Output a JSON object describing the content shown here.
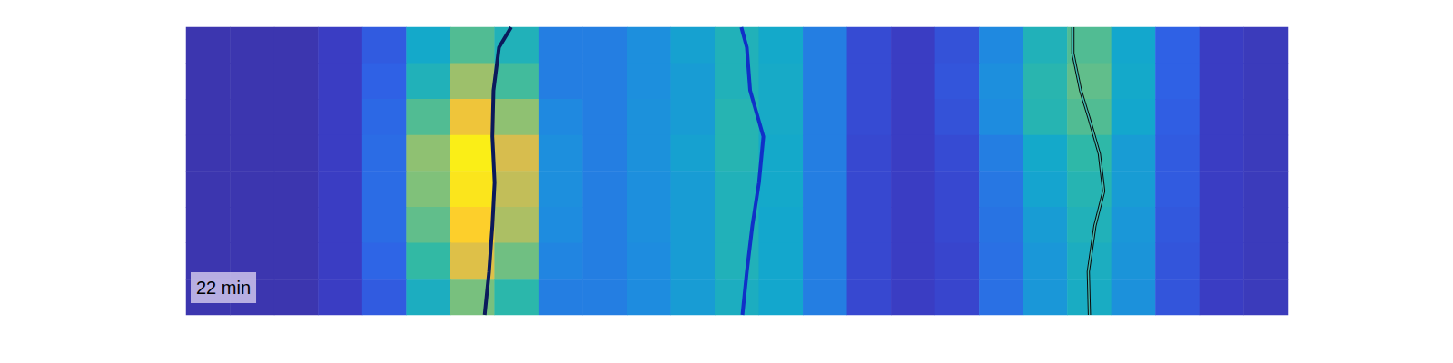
{
  "chart_data": {
    "type": "heatmap",
    "annotation": "22 min",
    "tick_labels": false,
    "xlim": [
      0,
      100
    ],
    "ylim": [
      0,
      100
    ],
    "zlim": [
      0,
      1
    ],
    "cells": [
      [
        0.05,
        0.05,
        0.05,
        0.1,
        0.2,
        0.45,
        0.6,
        0.5,
        0.3,
        0.3,
        0.35,
        0.42,
        0.5,
        0.45,
        0.3,
        0.15,
        0.1,
        0.17,
        0.33,
        0.5,
        0.6,
        0.44,
        0.22,
        0.1,
        0.08
      ],
      [
        0.05,
        0.05,
        0.05,
        0.1,
        0.22,
        0.5,
        0.7,
        0.58,
        0.3,
        0.3,
        0.35,
        0.4,
        0.5,
        0.46,
        0.3,
        0.15,
        0.1,
        0.18,
        0.35,
        0.53,
        0.62,
        0.45,
        0.22,
        0.1,
        0.08
      ],
      [
        0.05,
        0.05,
        0.05,
        0.1,
        0.24,
        0.6,
        0.85,
        0.68,
        0.33,
        0.3,
        0.36,
        0.4,
        0.52,
        0.46,
        0.3,
        0.15,
        0.1,
        0.17,
        0.34,
        0.52,
        0.6,
        0.44,
        0.21,
        0.1,
        0.08
      ],
      [
        0.05,
        0.05,
        0.05,
        0.1,
        0.25,
        0.68,
        0.97,
        0.78,
        0.35,
        0.3,
        0.36,
        0.42,
        0.52,
        0.45,
        0.3,
        0.14,
        0.1,
        0.15,
        0.3,
        0.45,
        0.55,
        0.4,
        0.2,
        0.1,
        0.08
      ],
      [
        0.05,
        0.05,
        0.05,
        0.1,
        0.25,
        0.66,
        0.95,
        0.75,
        0.35,
        0.3,
        0.35,
        0.4,
        0.5,
        0.45,
        0.3,
        0.14,
        0.1,
        0.14,
        0.28,
        0.43,
        0.52,
        0.4,
        0.2,
        0.1,
        0.08
      ],
      [
        0.05,
        0.05,
        0.05,
        0.1,
        0.25,
        0.62,
        0.9,
        0.72,
        0.34,
        0.3,
        0.35,
        0.4,
        0.5,
        0.44,
        0.3,
        0.14,
        0.1,
        0.14,
        0.27,
        0.4,
        0.5,
        0.38,
        0.19,
        0.1,
        0.08
      ],
      [
        0.05,
        0.05,
        0.05,
        0.1,
        0.23,
        0.56,
        0.8,
        0.64,
        0.32,
        0.3,
        0.34,
        0.4,
        0.5,
        0.44,
        0.3,
        0.14,
        0.1,
        0.13,
        0.26,
        0.38,
        0.48,
        0.37,
        0.18,
        0.1,
        0.08
      ],
      [
        0.05,
        0.05,
        0.05,
        0.1,
        0.2,
        0.48,
        0.65,
        0.54,
        0.3,
        0.3,
        0.34,
        0.4,
        0.48,
        0.44,
        0.3,
        0.14,
        0.1,
        0.13,
        0.26,
        0.38,
        0.47,
        0.36,
        0.18,
        0.1,
        0.08
      ]
    ],
    "series": [
      {
        "type": "line",
        "color": "#0b1a5c",
        "line_style": "solid",
        "x": [
          29.5,
          28.4,
          27.9,
          27.8,
          28.0,
          27.8,
          27.5,
          27.1
        ],
        "values": [
          0,
          7,
          22,
          38,
          54,
          69,
          85,
          100
        ]
      },
      {
        "type": "line",
        "color": "#1030c8",
        "line_style": "solid",
        "x": [
          50.4,
          50.9,
          51.2,
          52.4,
          52.0,
          51.4,
          50.9,
          50.5
        ],
        "values": [
          0,
          7,
          22,
          38,
          54,
          69,
          85,
          100
        ]
      },
      {
        "type": "line",
        "color": "#3fb8b0",
        "line_style": "outlined",
        "x": [
          80.5,
          80.5,
          81.2,
          82.0,
          82.9,
          83.3,
          82.5,
          81.9,
          82.0
        ],
        "values": [
          0,
          9,
          22,
          32,
          44,
          57,
          69,
          85,
          100
        ]
      }
    ]
  }
}
